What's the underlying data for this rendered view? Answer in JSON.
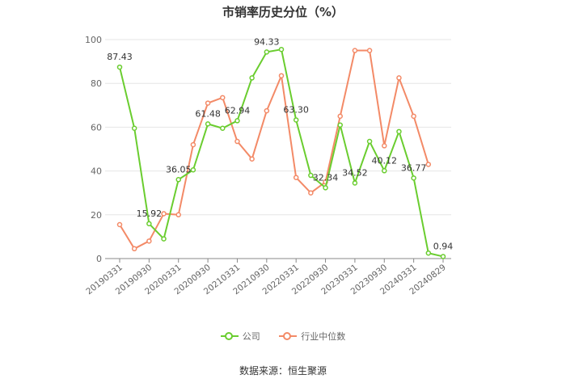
{
  "title": "市销率历史分位（%）",
  "source": "数据来源：恒生聚源",
  "colors": {
    "company": "#6acd2f",
    "industry": "#f38a67",
    "grid": "#e6e6e6",
    "axis": "#888888",
    "label": "#333333"
  },
  "chart_data": {
    "type": "line",
    "title": "市销率历史分位（%）",
    "ylim": [
      0,
      100
    ],
    "yticks": [
      0,
      20,
      40,
      60,
      80,
      100
    ],
    "grid": true,
    "legend_position": "bottom",
    "x": [
      "20190331",
      "20190630",
      "20190930",
      "20191231",
      "20200331",
      "20200630",
      "20200930",
      "20201231",
      "20210331",
      "20210630",
      "20210930",
      "20211231",
      "20220331",
      "20220630",
      "20220930",
      "20221231",
      "20230331",
      "20230630",
      "20230930",
      "20231231",
      "20240331",
      "20240630",
      "20240829"
    ],
    "xtick_labels": [
      "20190331",
      "20190930",
      "20200331",
      "20200930",
      "20210331",
      "20210930",
      "20220331",
      "20220930",
      "20230331",
      "20230930",
      "20240331",
      "20240829"
    ],
    "series": [
      {
        "name": "公司",
        "values": [
          87.43,
          59.5,
          15.92,
          9.0,
          36.05,
          40.5,
          61.48,
          59.5,
          62.94,
          82.5,
          94.33,
          95.5,
          63.3,
          38.0,
          32.34,
          61.0,
          34.52,
          53.5,
          40.12,
          58.0,
          36.77,
          2.5,
          0.94
        ]
      },
      {
        "name": "行业中位数",
        "values": [
          15.5,
          4.5,
          8.0,
          20.5,
          20.0,
          52.0,
          71.0,
          73.5,
          53.5,
          45.5,
          67.5,
          83.5,
          37.0,
          30.0,
          35.0,
          65.0,
          95.0,
          95.0,
          51.5,
          82.5,
          65.0,
          43.0,
          null
        ]
      }
    ],
    "data_labels": [
      {
        "series": 0,
        "index": 0,
        "text": "87.43"
      },
      {
        "series": 0,
        "index": 2,
        "text": "15.92"
      },
      {
        "series": 0,
        "index": 4,
        "text": "36.05"
      },
      {
        "series": 0,
        "index": 6,
        "text": "61.48"
      },
      {
        "series": 0,
        "index": 8,
        "text": "62.94"
      },
      {
        "series": 0,
        "index": 10,
        "text": "94.33"
      },
      {
        "series": 0,
        "index": 12,
        "text": "63.30"
      },
      {
        "series": 0,
        "index": 14,
        "text": "32.34"
      },
      {
        "series": 0,
        "index": 16,
        "text": "34.52"
      },
      {
        "series": 0,
        "index": 18,
        "text": "40.12"
      },
      {
        "series": 0,
        "index": 20,
        "text": "36.77"
      },
      {
        "series": 0,
        "index": 22,
        "text": "0.94"
      }
    ]
  },
  "legend": [
    {
      "label": "公司",
      "color": "#6acd2f"
    },
    {
      "label": "行业中位数",
      "color": "#f38a67"
    }
  ]
}
